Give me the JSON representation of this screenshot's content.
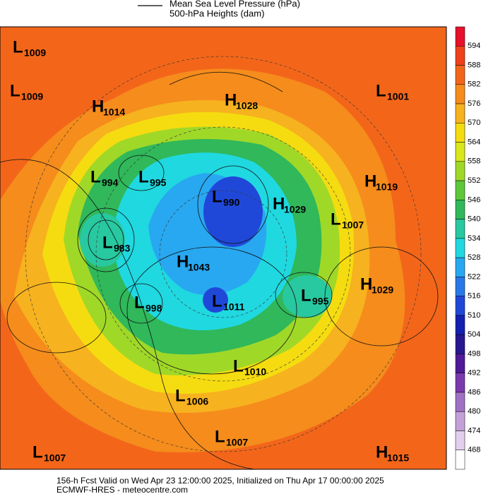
{
  "legend": {
    "line_label": "Mean Sea Level Pressure (hPa)",
    "fill_label": "500-hPa Heights (dam)"
  },
  "colorbar": {
    "ticks": [
      594,
      588,
      582,
      576,
      570,
      564,
      558,
      552,
      546,
      540,
      534,
      528,
      522,
      516,
      510,
      504,
      498,
      492,
      486,
      480,
      474,
      468
    ],
    "colors": [
      "#e8102a",
      "#f0401c",
      "#f3661a",
      "#f58c1c",
      "#f7b21f",
      "#f5dc10",
      "#d8e81c",
      "#a0d828",
      "#5ec83a",
      "#30b85a",
      "#28c8a0",
      "#20d8e0",
      "#28a8f0",
      "#2878e8",
      "#2048d8",
      "#1420b0",
      "#281890",
      "#501a98",
      "#7a3aae",
      "#a070c4",
      "#c4a0d8",
      "#e2cfee",
      "#ffffff"
    ]
  },
  "centers": [
    {
      "letter": "L",
      "value": 1009
    },
    {
      "letter": "L",
      "value": 1009
    },
    {
      "letter": "H",
      "value": 1014
    },
    {
      "letter": "H",
      "value": 1028
    },
    {
      "letter": "L",
      "value": 1001
    },
    {
      "letter": "L",
      "value": 994
    },
    {
      "letter": "L",
      "value": 995
    },
    {
      "letter": "L",
      "value": 990
    },
    {
      "letter": "H",
      "value": 1029
    },
    {
      "letter": "H",
      "value": 1019
    },
    {
      "letter": "L",
      "value": 1007
    },
    {
      "letter": "L",
      "value": 983
    },
    {
      "letter": "H",
      "value": 1043
    },
    {
      "letter": "H",
      "value": 1029
    },
    {
      "letter": "L",
      "value": 998
    },
    {
      "letter": "L",
      "value": 1011
    },
    {
      "letter": "L",
      "value": 995
    },
    {
      "letter": "L",
      "value": 1010
    },
    {
      "letter": "L",
      "value": 1006
    },
    {
      "letter": "L",
      "value": 1007
    },
    {
      "letter": "L",
      "value": 1007
    },
    {
      "letter": "H",
      "value": 1015
    }
  ],
  "footer": {
    "line1": "156-h Fcst Valid on Wed Apr 23 12:00:00 2025, Initialized on Thu Apr 17 00:00:00 2025",
    "line2": "ECMWF-HRES  - meteocentre.com"
  }
}
